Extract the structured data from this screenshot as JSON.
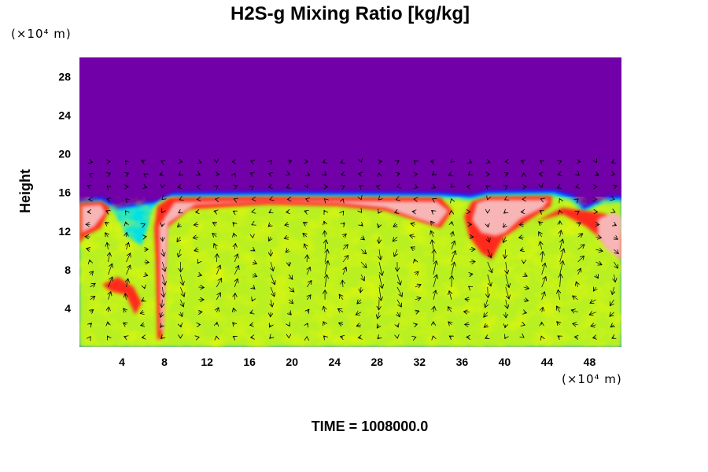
{
  "chart_data": {
    "type": "heatmap",
    "title": "H2S-g Mixing Ratio [kg/kg]",
    "ylabel": "Height",
    "y_unit_label": "(×10⁴ m)",
    "x_unit_label": "(×10⁴ m)",
    "xlim": [
      0,
      51
    ],
    "ylim": [
      0,
      30
    ],
    "x_ticks": [
      4,
      8,
      12,
      16,
      20,
      24,
      28,
      32,
      36,
      40,
      44,
      48
    ],
    "y_ticks": [
      4,
      8,
      12,
      16,
      20,
      24,
      28
    ],
    "footer": "TIME = 1008000.0",
    "colors": {
      "top_layer": "#7200a8",
      "boundary_red": "#ff2a1a",
      "boundary_pink": "#f7b5b5",
      "mixed_green": "#b8f020",
      "mixed_yellow": "#e8f000",
      "cyan": "#00e0e8",
      "blue": "#1820ff"
    },
    "layer_top_height": 15.5,
    "vector_field": "velocity arrows"
  }
}
